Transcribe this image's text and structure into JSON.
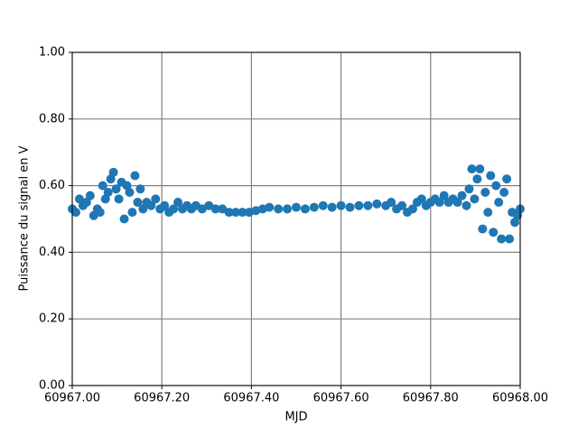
{
  "chart_data": {
    "type": "scatter",
    "xlabel": "MJD",
    "ylabel": "Puissance du signal en V",
    "series": [
      {
        "color": "#1f77b4",
        "x": [
          60967.0,
          60967.008,
          60967.016,
          60967.024,
          60967.032,
          60967.04,
          60967.048,
          60967.056,
          60967.062,
          60967.068,
          60967.074,
          60967.08,
          60967.086,
          60967.092,
          60967.098,
          60967.104,
          60967.11,
          60967.116,
          60967.122,
          60967.128,
          60967.134,
          60967.14,
          60967.146,
          60967.152,
          60967.158,
          60967.166,
          60967.176,
          60967.186,
          60967.196,
          60967.206,
          60967.216,
          60967.226,
          60967.236,
          60967.246,
          60967.256,
          60967.266,
          60967.276,
          60967.29,
          60967.305,
          60967.32,
          60967.335,
          60967.35,
          60967.365,
          60967.38,
          60967.395,
          60967.41,
          60967.425,
          60967.44,
          60967.46,
          60967.48,
          60967.5,
          60967.52,
          60967.54,
          60967.56,
          60967.58,
          60967.6,
          60967.62,
          60967.64,
          60967.66,
          60967.68,
          60967.7,
          60967.712,
          60967.724,
          60967.736,
          60967.748,
          60967.76,
          60967.77,
          60967.78,
          60967.79,
          60967.8,
          60967.81,
          60967.82,
          60967.83,
          60967.84,
          60967.85,
          60967.86,
          60967.87,
          60967.88,
          60967.886,
          60967.892,
          60967.898,
          60967.904,
          60967.91,
          60967.916,
          60967.922,
          60967.928,
          60967.934,
          60967.94,
          60967.946,
          60967.952,
          60967.958,
          60967.964,
          60967.97,
          60967.976,
          60967.982,
          60967.988,
          60967.994,
          60968.0
        ],
        "values": [
          0.53,
          0.52,
          0.56,
          0.54,
          0.55,
          0.57,
          0.51,
          0.53,
          0.52,
          0.6,
          0.56,
          0.58,
          0.62,
          0.64,
          0.59,
          0.56,
          0.61,
          0.5,
          0.6,
          0.58,
          0.52,
          0.63,
          0.55,
          0.59,
          0.53,
          0.55,
          0.54,
          0.56,
          0.53,
          0.54,
          0.52,
          0.53,
          0.55,
          0.53,
          0.54,
          0.53,
          0.54,
          0.53,
          0.54,
          0.53,
          0.53,
          0.52,
          0.52,
          0.52,
          0.52,
          0.525,
          0.53,
          0.535,
          0.53,
          0.53,
          0.535,
          0.53,
          0.535,
          0.54,
          0.535,
          0.54,
          0.535,
          0.54,
          0.54,
          0.545,
          0.54,
          0.55,
          0.53,
          0.54,
          0.52,
          0.53,
          0.55,
          0.56,
          0.54,
          0.55,
          0.56,
          0.55,
          0.57,
          0.55,
          0.56,
          0.55,
          0.57,
          0.54,
          0.59,
          0.65,
          0.56,
          0.62,
          0.65,
          0.47,
          0.58,
          0.52,
          0.63,
          0.46,
          0.6,
          0.55,
          0.44,
          0.58,
          0.62,
          0.44,
          0.52,
          0.49,
          0.51,
          0.53
        ]
      }
    ],
    "xlim": [
      60967,
      60968
    ],
    "xticks": [
      {
        "value": 60967,
        "label": "60967.00"
      },
      {
        "value": 60967.2,
        "label": "60967.20"
      },
      {
        "value": 60967.4,
        "label": "60967.40"
      },
      {
        "value": 60967.6,
        "label": "60967.60"
      },
      {
        "value": 60967.8,
        "label": "60967.80"
      },
      {
        "value": 60968,
        "label": "60968.00"
      }
    ],
    "ylim": [
      0,
      1
    ],
    "yticks": [
      {
        "value": 0,
        "label": "0.00"
      },
      {
        "value": 0.2,
        "label": "0.20"
      },
      {
        "value": 0.4,
        "label": "0.40"
      },
      {
        "value": 0.6,
        "label": "0.60"
      },
      {
        "value": 0.8,
        "label": "0.80"
      },
      {
        "value": 1,
        "label": "1.00"
      }
    ],
    "grid": true
  }
}
